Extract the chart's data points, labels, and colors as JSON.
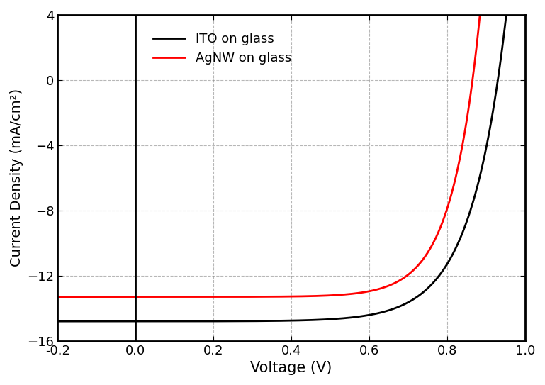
{
  "title": "",
  "xlabel": "Voltage (V)",
  "ylabel": "Current Density (mA/cm²)",
  "xlim": [
    -0.2,
    1.0
  ],
  "ylim": [
    -16,
    4
  ],
  "xticks": [
    -0.2,
    0.0,
    0.2,
    0.4,
    0.6,
    0.8,
    1.0
  ],
  "yticks": [
    -16,
    -12,
    -8,
    -4,
    0,
    4
  ],
  "grid_color": "#888888",
  "background_color": "#ffffff",
  "line_ITO_color": "#000000",
  "line_AgNW_color": "#ff0000",
  "line_width": 2.0,
  "legend_labels": [
    "ITO on glass",
    "AgNW on glass"
  ],
  "legend_loc": "upper left",
  "ITO_Jsc": -14.8,
  "ITO_Voc": 0.93,
  "ITO_n": 3.5,
  "AgNW_Jsc": -13.3,
  "AgNW_Voc": 0.865,
  "AgNW_n": 2.8,
  "label_fontsize": 15,
  "tick_fontsize": 13,
  "spine_linewidth": 2.0,
  "text_color": "#000000"
}
